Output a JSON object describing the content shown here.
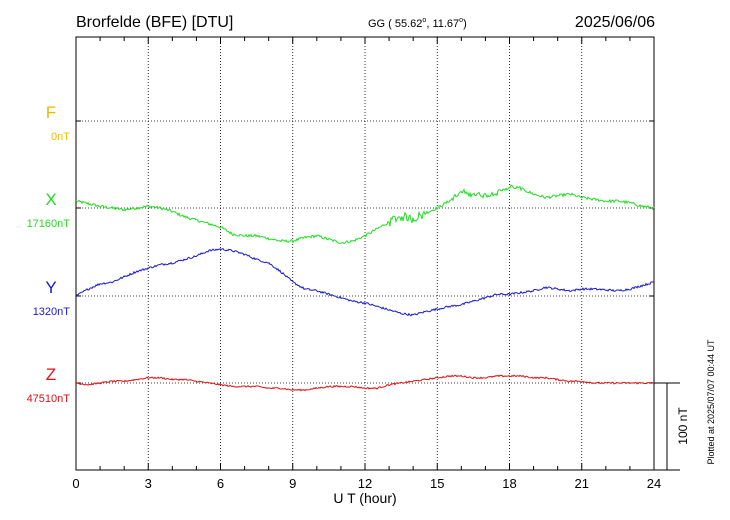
{
  "header": {
    "station": "Brorfelde (BFE)  [DTU]",
    "coords_prefix": "GG ( 55.62",
    "coords_lat_deg": "o",
    "coords_mid": ",  11.67",
    "coords_lon_deg": "o",
    "coords_suffix": ")",
    "date": "2025/06/06"
  },
  "side_note": "Plotted at 2025/07/07 00:44 UT",
  "scale_bar_label": "100 nT",
  "colors": {
    "F": "#f5b800",
    "X": "#22dd22",
    "Y": "#1a1acc",
    "Z": "#dd1111",
    "grid": "#000000"
  },
  "chart_data": {
    "type": "line",
    "xlabel": "U T (hour)",
    "xlim": [
      0,
      24
    ],
    "x_ticks": [
      "0",
      "3",
      "6",
      "9",
      "12",
      "15",
      "18",
      "21",
      "24"
    ],
    "scale_nT_per_bar": 100,
    "series": [
      {
        "name": "F",
        "baseline_label": "0nT",
        "baseline_nT": 0,
        "points": []
      },
      {
        "name": "X",
        "baseline_label": "17160nT",
        "baseline_nT": 17160,
        "points": [
          [
            0,
            17168
          ],
          [
            0.5,
            17165
          ],
          [
            1,
            17162
          ],
          [
            1.5,
            17160
          ],
          [
            2,
            17158
          ],
          [
            2.5,
            17160
          ],
          [
            3,
            17162
          ],
          [
            3.5,
            17160
          ],
          [
            4,
            17156
          ],
          [
            4.5,
            17150
          ],
          [
            5,
            17146
          ],
          [
            5.5,
            17142
          ],
          [
            6,
            17138
          ],
          [
            6.5,
            17130
          ],
          [
            7,
            17128
          ],
          [
            7.5,
            17128
          ],
          [
            8,
            17125
          ],
          [
            8.5,
            17122
          ],
          [
            9,
            17122
          ],
          [
            9.5,
            17126
          ],
          [
            10,
            17128
          ],
          [
            10.5,
            17124
          ],
          [
            11,
            17120
          ],
          [
            11.5,
            17122
          ],
          [
            12,
            17128
          ],
          [
            12.5,
            17136
          ],
          [
            13,
            17144
          ],
          [
            13.5,
            17150
          ],
          [
            14,
            17148
          ],
          [
            14.5,
            17154
          ],
          [
            15,
            17160
          ],
          [
            15.5,
            17168
          ],
          [
            16,
            17178
          ],
          [
            16.5,
            17176
          ],
          [
            17,
            17174
          ],
          [
            17.5,
            17178
          ],
          [
            18,
            17184
          ],
          [
            18.5,
            17182
          ],
          [
            19,
            17176
          ],
          [
            19.5,
            17172
          ],
          [
            20,
            17174
          ],
          [
            20.5,
            17176
          ],
          [
            21,
            17172
          ],
          [
            21.5,
            17170
          ],
          [
            22,
            17168
          ],
          [
            22.5,
            17168
          ],
          [
            23,
            17166
          ],
          [
            23.5,
            17162
          ],
          [
            24,
            17160
          ]
        ]
      },
      {
        "name": "Y",
        "baseline_label": "1320nT",
        "baseline_nT": 1320,
        "points": [
          [
            0,
            1320
          ],
          [
            0.5,
            1328
          ],
          [
            1,
            1334
          ],
          [
            1.5,
            1336
          ],
          [
            2,
            1342
          ],
          [
            2.5,
            1348
          ],
          [
            3,
            1352
          ],
          [
            3.5,
            1356
          ],
          [
            4,
            1358
          ],
          [
            4.5,
            1362
          ],
          [
            5,
            1366
          ],
          [
            5.5,
            1372
          ],
          [
            6,
            1374
          ],
          [
            6.5,
            1372
          ],
          [
            7,
            1368
          ],
          [
            7.5,
            1362
          ],
          [
            8,
            1358
          ],
          [
            8.5,
            1348
          ],
          [
            9,
            1336
          ],
          [
            9.5,
            1328
          ],
          [
            10,
            1326
          ],
          [
            10.5,
            1322
          ],
          [
            11,
            1318
          ],
          [
            11.5,
            1314
          ],
          [
            12,
            1312
          ],
          [
            12.5,
            1308
          ],
          [
            13,
            1304
          ],
          [
            13.5,
            1300
          ],
          [
            14,
            1298
          ],
          [
            14.5,
            1302
          ],
          [
            15,
            1305
          ],
          [
            15.5,
            1308
          ],
          [
            16,
            1310
          ],
          [
            16.5,
            1314
          ],
          [
            17,
            1318
          ],
          [
            17.5,
            1322
          ],
          [
            18,
            1322
          ],
          [
            18.5,
            1324
          ],
          [
            19,
            1326
          ],
          [
            19.5,
            1330
          ],
          [
            20,
            1328
          ],
          [
            20.5,
            1326
          ],
          [
            21,
            1328
          ],
          [
            21.5,
            1328
          ],
          [
            22,
            1327
          ],
          [
            22.5,
            1326
          ],
          [
            23,
            1328
          ],
          [
            23.5,
            1332
          ],
          [
            24,
            1336
          ]
        ]
      },
      {
        "name": "Z",
        "baseline_label": "47510nT",
        "baseline_nT": 47510,
        "points": [
          [
            0,
            47510
          ],
          [
            0.5,
            47508
          ],
          [
            1,
            47510
          ],
          [
            1.5,
            47512
          ],
          [
            2,
            47512
          ],
          [
            2.5,
            47514
          ],
          [
            3,
            47516
          ],
          [
            3.5,
            47516
          ],
          [
            4,
            47514
          ],
          [
            4.5,
            47514
          ],
          [
            5,
            47512
          ],
          [
            5.5,
            47510
          ],
          [
            6,
            47508
          ],
          [
            6.5,
            47506
          ],
          [
            7,
            47506
          ],
          [
            7.5,
            47506
          ],
          [
            8,
            47504
          ],
          [
            8.5,
            47504
          ],
          [
            9,
            47502
          ],
          [
            9.5,
            47502
          ],
          [
            10,
            47504
          ],
          [
            10.5,
            47506
          ],
          [
            11,
            47506
          ],
          [
            11.5,
            47506
          ],
          [
            12,
            47504
          ],
          [
            12.5,
            47504
          ],
          [
            13,
            47508
          ],
          [
            13.5,
            47510
          ],
          [
            14,
            47512
          ],
          [
            14.5,
            47514
          ],
          [
            15,
            47516
          ],
          [
            15.5,
            47518
          ],
          [
            16,
            47518
          ],
          [
            16.5,
            47516
          ],
          [
            17,
            47516
          ],
          [
            17.5,
            47518
          ],
          [
            18,
            47518
          ],
          [
            18.5,
            47518
          ],
          [
            19,
            47516
          ],
          [
            19.5,
            47516
          ],
          [
            20,
            47514
          ],
          [
            20.5,
            47512
          ],
          [
            21,
            47512
          ],
          [
            21.5,
            47510
          ],
          [
            22,
            47510
          ],
          [
            22.5,
            47510
          ],
          [
            23,
            47510
          ],
          [
            23.5,
            47510
          ],
          [
            24,
            47510
          ]
        ]
      }
    ]
  }
}
